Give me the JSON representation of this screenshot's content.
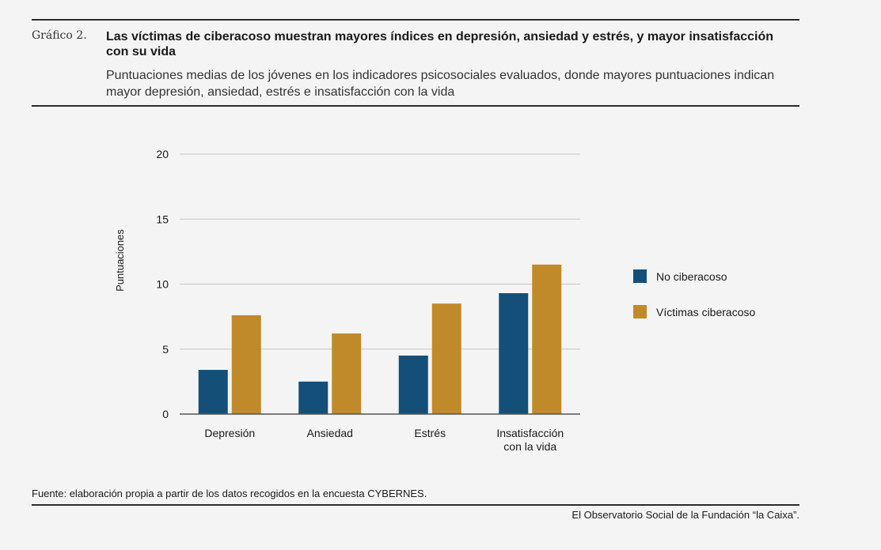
{
  "header": {
    "figure_label": "Gráfico 2.",
    "title": "Las víctimas de ciberacoso muestran mayores índices en depresión, ansiedad y estrés, y mayor insatisfacción con su vida",
    "subtitle": "Puntuaciones medias de los jóvenes en los indicadores psicosociales evaluados, donde mayores puntuaciones indican mayor depresión, ansiedad, estrés e insatisfacción con la vida"
  },
  "footer": {
    "source": "Fuente: elaboración propia a partir de los datos recogidos en la encuesta CYBERNES.",
    "credit": "El Observatorio Social de la Fundación “la Caixa”."
  },
  "colors": {
    "series_1": "#134f78",
    "series_2": "#c08a2a",
    "grid": "#c6c6c6",
    "axis": "#555555"
  },
  "chart_data": {
    "type": "bar",
    "categories": [
      [
        "Depresión"
      ],
      [
        "Ansiedad"
      ],
      [
        "Estrés"
      ],
      [
        "Insatisfacción",
        "con la vida"
      ]
    ],
    "series": [
      {
        "name": "No ciberacoso",
        "values": [
          3.4,
          2.5,
          4.5,
          9.3
        ]
      },
      {
        "name": "Víctimas ciberacoso",
        "values": [
          7.6,
          6.2,
          8.5,
          11.5
        ]
      }
    ],
    "ylabel": "Puntuaciones",
    "xlabel": "",
    "ylim": [
      0,
      20
    ],
    "yticks": [
      0,
      5,
      10,
      15,
      20
    ],
    "grid": true,
    "legend_position": "right"
  }
}
